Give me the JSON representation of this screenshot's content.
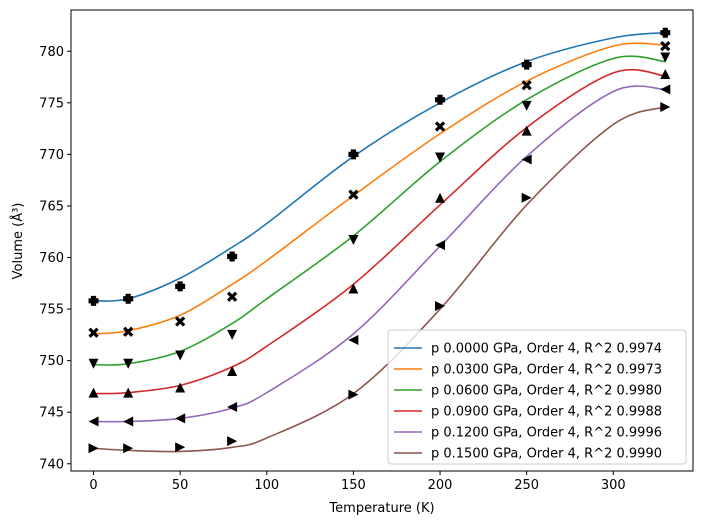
{
  "chart_data": {
    "type": "line",
    "xlabel": "Temperature (K)",
    "ylabel": "Volume (Å³)",
    "xlim": [
      -13,
      346
    ],
    "ylim": [
      739.3,
      784.0
    ],
    "xticks": [
      0,
      50,
      100,
      150,
      200,
      250,
      300
    ],
    "yticks": [
      740,
      745,
      750,
      755,
      760,
      765,
      770,
      775,
      780
    ],
    "grid": false,
    "legend_position": "lower-right",
    "temperatures": [
      0,
      20,
      50,
      80,
      150,
      200,
      250,
      330
    ],
    "series": [
      {
        "name": "p 0.0000 GPa, Order 4, R^2 0.9974",
        "color": "#1f77b4",
        "marker": "plus",
        "points": [
          755.8,
          756.0,
          757.2,
          760.1,
          770.0,
          775.3,
          778.7,
          781.8
        ],
        "fit": [
          [
            0,
            755.8
          ],
          [
            20,
            756.0
          ],
          [
            50,
            758.0
          ],
          [
            80,
            761.0
          ],
          [
            100,
            763.3
          ],
          [
            150,
            769.8
          ],
          [
            200,
            775.0
          ],
          [
            250,
            779.0
          ],
          [
            300,
            781.3
          ],
          [
            330,
            781.8
          ]
        ]
      },
      {
        "name": "p 0.0300 GPa, Order 4, R^2 0.9973",
        "color": "#ff7f0e",
        "marker": "x",
        "points": [
          752.7,
          752.8,
          753.8,
          756.2,
          766.1,
          772.7,
          776.7,
          780.5
        ],
        "fit": [
          [
            0,
            752.6
          ],
          [
            20,
            752.9
          ],
          [
            50,
            754.4
          ],
          [
            80,
            757.4
          ],
          [
            100,
            759.7
          ],
          [
            150,
            766.0
          ],
          [
            200,
            772.0
          ],
          [
            250,
            777.1
          ],
          [
            300,
            780.5
          ],
          [
            330,
            780.6
          ]
        ]
      },
      {
        "name": "p 0.0600 GPa, Order 4, R^2 0.9980",
        "color": "#2ca02c",
        "marker": "triangle-down",
        "points": [
          749.7,
          749.7,
          750.5,
          752.5,
          761.7,
          769.7,
          774.7,
          779.4
        ],
        "fit": [
          [
            0,
            749.6
          ],
          [
            20,
            749.7
          ],
          [
            50,
            750.9
          ],
          [
            80,
            753.6
          ],
          [
            100,
            756.0
          ],
          [
            150,
            762.1
          ],
          [
            200,
            769.3
          ],
          [
            250,
            775.3
          ],
          [
            300,
            779.3
          ],
          [
            330,
            779.0
          ]
        ]
      },
      {
        "name": "p 0.0900 GPa, Order 4, R^2 0.9988",
        "color": "#d62728",
        "marker": "triangle-up",
        "points": [
          746.9,
          746.9,
          747.4,
          749.0,
          757.0,
          765.8,
          772.3,
          777.8
        ],
        "fit": [
          [
            0,
            746.8
          ],
          [
            20,
            746.9
          ],
          [
            50,
            747.6
          ],
          [
            80,
            749.4
          ],
          [
            100,
            751.4
          ],
          [
            150,
            757.4
          ],
          [
            200,
            765.1
          ],
          [
            250,
            772.6
          ],
          [
            300,
            777.9
          ],
          [
            330,
            777.6
          ]
        ]
      },
      {
        "name": "p 0.1200 GPa, Order 4, R^2 0.9996",
        "color": "#9467bd",
        "marker": "triangle-left",
        "points": [
          744.1,
          744.1,
          744.4,
          745.5,
          752.0,
          761.2,
          769.5,
          776.3
        ],
        "fit": [
          [
            0,
            744.1
          ],
          [
            20,
            744.1
          ],
          [
            50,
            744.4
          ],
          [
            80,
            745.4
          ],
          [
            100,
            746.9
          ],
          [
            150,
            752.6
          ],
          [
            200,
            761.1
          ],
          [
            250,
            769.8
          ],
          [
            300,
            776.1
          ],
          [
            330,
            776.3
          ]
        ]
      },
      {
        "name": "p 0.1500 GPa, Order 4, R^2 0.9990",
        "color": "#8c564b",
        "marker": "triangle-right",
        "points": [
          741.5,
          741.5,
          741.6,
          742.2,
          746.7,
          755.3,
          765.8,
          774.6
        ],
        "fit": [
          [
            0,
            741.5
          ],
          [
            20,
            741.3
          ],
          [
            50,
            741.2
          ],
          [
            80,
            741.6
          ],
          [
            100,
            742.5
          ],
          [
            150,
            746.8
          ],
          [
            200,
            755.0
          ],
          [
            250,
            765.1
          ],
          [
            300,
            772.9
          ],
          [
            330,
            774.6
          ]
        ]
      }
    ]
  }
}
